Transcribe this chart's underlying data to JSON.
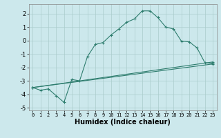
{
  "title": "",
  "xlabel": "Humidex (Indice chaleur)",
  "bg_color": "#cce8ec",
  "line_color": "#2e7d6e",
  "grid_color": "#aacccc",
  "xlim": [
    -0.5,
    23.5
  ],
  "ylim": [
    -5.2,
    2.7
  ],
  "yticks": [
    -5,
    -4,
    -3,
    -2,
    -1,
    0,
    1,
    2
  ],
  "xticks": [
    0,
    1,
    2,
    3,
    4,
    5,
    6,
    7,
    8,
    9,
    10,
    11,
    12,
    13,
    14,
    15,
    16,
    17,
    18,
    19,
    20,
    21,
    22,
    23
  ],
  "line1_x": [
    0,
    1,
    2,
    3,
    4,
    5,
    6,
    7,
    8,
    9,
    10,
    11,
    12,
    13,
    14,
    15,
    16,
    17,
    18,
    19,
    20,
    21,
    22,
    23
  ],
  "line1_y": [
    -3.5,
    -3.7,
    -3.6,
    -4.1,
    -4.6,
    -2.9,
    -3.0,
    -1.2,
    -0.3,
    -0.15,
    0.4,
    0.85,
    1.35,
    1.6,
    2.2,
    2.2,
    1.7,
    1.0,
    0.85,
    -0.05,
    -0.1,
    -0.55,
    -1.65,
    -1.7
  ],
  "line2_x": [
    0,
    23
  ],
  "line2_y": [
    -3.5,
    -1.6
  ],
  "line3_x": [
    0,
    23
  ],
  "line3_y": [
    -3.5,
    -1.75
  ],
  "marker": "+"
}
